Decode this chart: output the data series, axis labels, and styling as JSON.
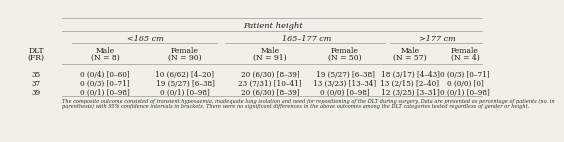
{
  "title": "Patient height",
  "col_groups": [
    "<165 cm",
    "165–177 cm",
    ">177 cm"
  ],
  "subheader_row1": [
    "DLT",
    "Male",
    "Female",
    "Male",
    "Female",
    "Male",
    "Female"
  ],
  "subheader_row2": [
    "(FR)",
    "(N = 8)",
    "(N = 90)",
    "(N = 91)",
    "(N = 50)",
    "(N = 57)",
    "(N = 4)"
  ],
  "row_labels": [
    "35",
    "37",
    "39"
  ],
  "data": [
    [
      "0 (0/4) [0–60]",
      "10 (6/62) [4–20]",
      "20 (6/30) [8–39]",
      "19 (5/27) [6–38]",
      "18 (3/17) [4–43]",
      "0 (0/3) [0–71]"
    ],
    [
      "0 (0/3) [0–71]",
      "19 (5/27) [6–38]",
      "23 (7/31) [10–41]",
      "13 (3/23) [13–34]",
      "13 (2/15) [2–40]",
      "0 (0/0) [0]"
    ],
    [
      "0 (0/1) [0–98]",
      "0 (0/1) [0–98]",
      "20 (6/30) [8–39]",
      "0 (0/0) [0–98]",
      "12 (3/25) [3–31]",
      "0 (0/1) [0–98]"
    ]
  ],
  "footnote_line1": "The composite outcome consisted of transient hypoxaemia, inadequate lung isolation and need for repositioning of the DLT during surgery. Data are presented as percentage of patients (no. in",
  "footnote_line2": "parenthesis) with 95% confidence intervals in brackets. There were no significant differences in the above outcomes among the DLT categories tested regardless of gender or height.",
  "bg_color": "#f0efea",
  "line_color": "#999999",
  "text_color": "#1a1a1a",
  "footnote_color": "#2a2a2a",
  "title_fontsize": 6.0,
  "group_fontsize": 5.8,
  "subhdr_fontsize": 5.5,
  "data_fontsize": 5.2,
  "footnote_fontsize": 3.6
}
